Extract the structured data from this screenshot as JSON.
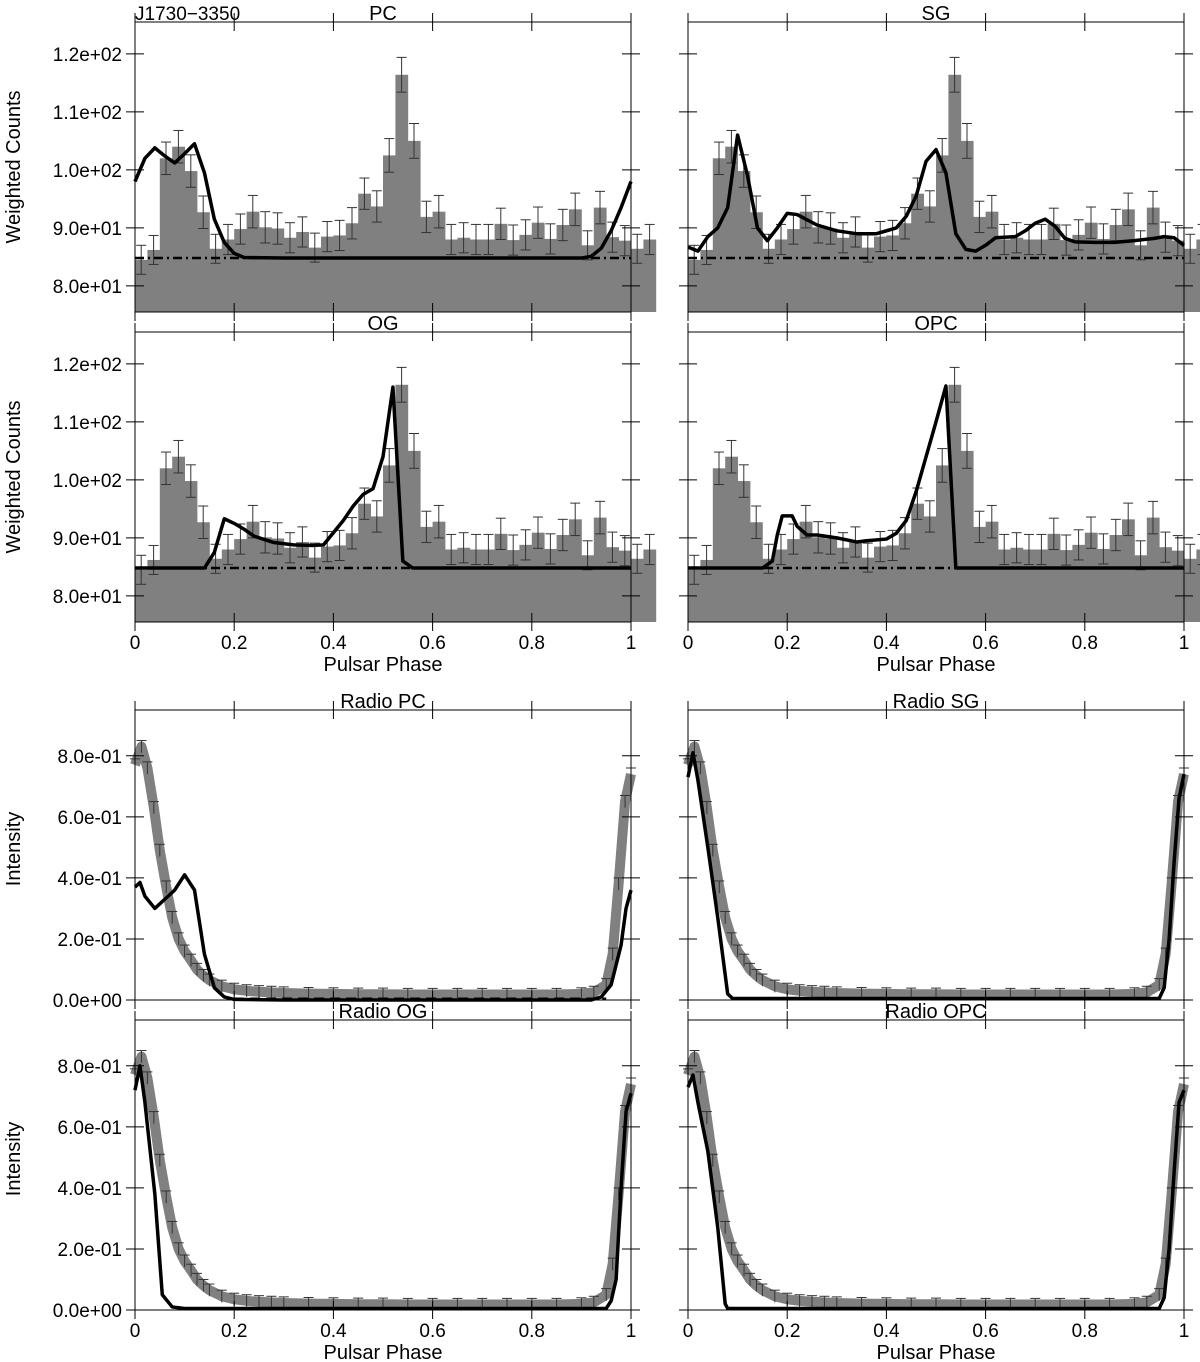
{
  "figure": {
    "source_label": "J1730−3350",
    "xlabel": "Pulsar Phase",
    "gamma_ylabel": "Weighted Counts",
    "radio_ylabel": "Intensity"
  },
  "colors": {
    "histogram": "#808080",
    "model_line": "#000000",
    "background_line": "#000000",
    "radio_profile": "#808080"
  },
  "axes": {
    "x_ticks": [
      0,
      0.2,
      0.4,
      0.6,
      0.8,
      1
    ],
    "x_tick_labels": [
      "0",
      "0.2",
      "0.4",
      "0.6",
      "0.8",
      "1"
    ],
    "gamma_ylim": [
      75.5,
      125.5
    ],
    "gamma_y_ticks": [
      80,
      90,
      100,
      110,
      120
    ],
    "gamma_y_tick_labels": [
      "8.0e+01",
      "9.0e+01",
      "1.0e+02",
      "1.1e+02",
      "1.2e+02"
    ],
    "radio_ylim": [
      0,
      0.95
    ],
    "radio_y_ticks": [
      0,
      0.2,
      0.4,
      0.6,
      0.8
    ],
    "radio_y_tick_labels": [
      "0.0e+00",
      "2.0e-01",
      "4.0e-01",
      "6.0e-01",
      "8.0e-01"
    ]
  },
  "chart_data": [
    {
      "type": "bar",
      "title": "PC",
      "xlabel": "",
      "ylabel": "Weighted Counts",
      "bin_width": 0.025,
      "histogram": [
        84.5,
        86.2,
        102.0,
        104.0,
        99.8,
        92.7,
        86.4,
        88.0,
        89.8,
        92.8,
        90.1,
        89.9,
        88.3,
        89.3,
        86.6,
        88.5,
        88.7,
        90.8,
        95.9,
        93.7,
        102.5,
        116.4,
        105.0,
        91.9,
        92.8,
        88.0,
        88.3,
        88.0,
        88.0,
        90.7,
        87.9,
        88.8,
        90.9,
        88.1,
        90.5,
        93.2,
        87.0,
        93.5,
        88.4,
        87.8,
        86.4,
        88.0
      ],
      "errors": [
        2.5,
        2.5,
        2.8,
        2.8,
        2.8,
        2.8,
        2.5,
        2.6,
        2.6,
        2.8,
        2.7,
        2.7,
        2.6,
        2.6,
        2.5,
        2.6,
        2.6,
        2.7,
        2.7,
        2.7,
        2.9,
        3.0,
        3.0,
        2.7,
        2.8,
        2.6,
        2.6,
        2.6,
        2.6,
        2.7,
        2.6,
        2.6,
        2.7,
        2.6,
        2.7,
        2.8,
        2.5,
        2.8,
        2.6,
        2.6,
        2.5,
        2.6
      ],
      "background": 84.8,
      "model": [
        [
          0.0,
          98.0
        ],
        [
          0.02,
          102.0
        ],
        [
          0.04,
          103.8
        ],
        [
          0.06,
          102.4
        ],
        [
          0.08,
          101.2
        ],
        [
          0.1,
          102.8
        ],
        [
          0.12,
          104.5
        ],
        [
          0.14,
          99.5
        ],
        [
          0.16,
          91.5
        ],
        [
          0.18,
          87.5
        ],
        [
          0.2,
          85.6
        ],
        [
          0.22,
          84.9
        ],
        [
          0.3,
          84.8
        ],
        [
          0.9,
          84.8
        ],
        [
          0.92,
          85.1
        ],
        [
          0.94,
          86.5
        ],
        [
          0.96,
          89.5
        ],
        [
          0.98,
          93.5
        ],
        [
          1.0,
          98.0
        ]
      ]
    },
    {
      "type": "bar",
      "title": "SG",
      "xlabel": "",
      "ylabel": "",
      "bin_width": 0.025,
      "histogram": [
        84.5,
        86.2,
        102.0,
        104.0,
        99.8,
        92.7,
        86.4,
        88.0,
        89.8,
        92.8,
        90.1,
        89.9,
        88.3,
        89.3,
        86.6,
        88.5,
        88.7,
        90.8,
        95.9,
        93.7,
        102.5,
        116.4,
        105.0,
        91.9,
        92.8,
        88.0,
        88.3,
        88.0,
        88.0,
        90.7,
        87.9,
        88.8,
        90.9,
        88.1,
        90.5,
        93.2,
        87.0,
        93.5,
        88.4,
        87.8,
        86.4,
        88.0
      ],
      "errors": [
        2.5,
        2.5,
        2.8,
        2.8,
        2.8,
        2.8,
        2.5,
        2.6,
        2.6,
        2.8,
        2.7,
        2.7,
        2.6,
        2.6,
        2.5,
        2.6,
        2.6,
        2.7,
        2.7,
        2.7,
        2.9,
        3.0,
        3.0,
        2.7,
        2.8,
        2.6,
        2.6,
        2.6,
        2.6,
        2.7,
        2.6,
        2.6,
        2.7,
        2.6,
        2.7,
        2.8,
        2.5,
        2.8,
        2.6,
        2.6,
        2.5,
        2.6
      ],
      "background": 84.8,
      "model": [
        [
          0.0,
          86.7
        ],
        [
          0.02,
          86.0
        ],
        [
          0.04,
          88.5
        ],
        [
          0.06,
          90.0
        ],
        [
          0.08,
          93.5
        ],
        [
          0.1,
          106.0
        ],
        [
          0.12,
          99.0
        ],
        [
          0.14,
          90.0
        ],
        [
          0.16,
          87.8
        ],
        [
          0.18,
          90.0
        ],
        [
          0.2,
          92.5
        ],
        [
          0.22,
          92.3
        ],
        [
          0.26,
          90.5
        ],
        [
          0.3,
          89.5
        ],
        [
          0.34,
          89.0
        ],
        [
          0.38,
          89.0
        ],
        [
          0.42,
          90.0
        ],
        [
          0.44,
          92.0
        ],
        [
          0.46,
          95.5
        ],
        [
          0.48,
          101.5
        ],
        [
          0.5,
          103.5
        ],
        [
          0.52,
          99.5
        ],
        [
          0.54,
          89.0
        ],
        [
          0.56,
          86.3
        ],
        [
          0.58,
          86.0
        ],
        [
          0.6,
          87.0
        ],
        [
          0.62,
          88.3
        ],
        [
          0.66,
          88.5
        ],
        [
          0.68,
          89.5
        ],
        [
          0.7,
          90.8
        ],
        [
          0.72,
          91.5
        ],
        [
          0.74,
          90.3
        ],
        [
          0.76,
          88.2
        ],
        [
          0.78,
          87.6
        ],
        [
          0.82,
          87.5
        ],
        [
          0.86,
          87.5
        ],
        [
          0.9,
          87.8
        ],
        [
          0.94,
          88.2
        ],
        [
          0.96,
          88.5
        ],
        [
          0.98,
          88.3
        ],
        [
          1.0,
          87.0
        ]
      ]
    },
    {
      "type": "bar",
      "title": "OG",
      "xlabel": "Pulsar Phase",
      "ylabel": "Weighted Counts",
      "bin_width": 0.025,
      "histogram": [
        84.5,
        86.2,
        102.0,
        104.0,
        99.8,
        92.7,
        86.4,
        88.0,
        89.8,
        92.8,
        90.1,
        89.9,
        88.3,
        89.3,
        86.6,
        88.5,
        88.7,
        90.8,
        95.9,
        93.7,
        102.5,
        116.4,
        105.0,
        91.9,
        92.8,
        88.0,
        88.3,
        88.0,
        88.0,
        90.7,
        87.9,
        88.8,
        90.9,
        88.1,
        90.5,
        93.2,
        87.0,
        93.5,
        88.4,
        87.8,
        86.4,
        88.0
      ],
      "errors": [
        2.5,
        2.5,
        2.8,
        2.8,
        2.8,
        2.8,
        2.5,
        2.6,
        2.6,
        2.8,
        2.7,
        2.7,
        2.6,
        2.6,
        2.5,
        2.6,
        2.6,
        2.7,
        2.7,
        2.7,
        2.9,
        3.0,
        3.0,
        2.7,
        2.8,
        2.6,
        2.6,
        2.6,
        2.6,
        2.7,
        2.6,
        2.6,
        2.7,
        2.6,
        2.7,
        2.8,
        2.5,
        2.8,
        2.6,
        2.6,
        2.5,
        2.6
      ],
      "background": 84.8,
      "model": [
        [
          0.0,
          84.8
        ],
        [
          0.14,
          84.8
        ],
        [
          0.16,
          87.5
        ],
        [
          0.18,
          93.3
        ],
        [
          0.2,
          92.5
        ],
        [
          0.22,
          91.5
        ],
        [
          0.24,
          90.3
        ],
        [
          0.28,
          89.2
        ],
        [
          0.32,
          88.8
        ],
        [
          0.36,
          88.7
        ],
        [
          0.38,
          88.8
        ],
        [
          0.42,
          93.0
        ],
        [
          0.44,
          95.5
        ],
        [
          0.46,
          97.5
        ],
        [
          0.48,
          98.5
        ],
        [
          0.5,
          104.0
        ],
        [
          0.52,
          116.0
        ],
        [
          0.54,
          86.0
        ],
        [
          0.56,
          84.8
        ],
        [
          1.0,
          84.8
        ]
      ]
    },
    {
      "type": "bar",
      "title": "OPC",
      "xlabel": "Pulsar Phase",
      "ylabel": "",
      "bin_width": 0.025,
      "histogram": [
        84.5,
        86.2,
        102.0,
        104.0,
        99.8,
        92.7,
        86.4,
        88.0,
        89.8,
        92.8,
        90.1,
        89.9,
        88.3,
        89.3,
        86.6,
        88.5,
        88.7,
        90.8,
        95.9,
        93.7,
        102.5,
        116.4,
        105.0,
        91.9,
        92.8,
        88.0,
        88.3,
        88.0,
        88.0,
        90.7,
        87.9,
        88.8,
        90.9,
        88.1,
        90.5,
        93.2,
        87.0,
        93.5,
        88.4,
        87.8,
        86.4,
        88.0
      ],
      "errors": [
        2.5,
        2.5,
        2.8,
        2.8,
        2.8,
        2.8,
        2.5,
        2.6,
        2.6,
        2.8,
        2.7,
        2.7,
        2.6,
        2.6,
        2.5,
        2.6,
        2.6,
        2.7,
        2.7,
        2.7,
        2.9,
        3.0,
        3.0,
        2.7,
        2.8,
        2.6,
        2.6,
        2.6,
        2.6,
        2.7,
        2.6,
        2.6,
        2.7,
        2.6,
        2.7,
        2.8,
        2.5,
        2.8,
        2.6,
        2.6,
        2.5,
        2.6
      ],
      "background": 84.8,
      "model": [
        [
          0.0,
          84.8
        ],
        [
          0.15,
          84.8
        ],
        [
          0.17,
          86.0
        ],
        [
          0.18,
          90.5
        ],
        [
          0.19,
          93.8
        ],
        [
          0.21,
          93.8
        ],
        [
          0.22,
          92.0
        ],
        [
          0.24,
          90.5
        ],
        [
          0.26,
          90.5
        ],
        [
          0.3,
          90.0
        ],
        [
          0.34,
          89.3
        ],
        [
          0.36,
          89.5
        ],
        [
          0.4,
          89.8
        ],
        [
          0.42,
          90.8
        ],
        [
          0.44,
          93.0
        ],
        [
          0.46,
          98.0
        ],
        [
          0.48,
          104.0
        ],
        [
          0.5,
          110.0
        ],
        [
          0.52,
          116.2
        ],
        [
          0.54,
          84.8
        ],
        [
          1.0,
          84.8
        ]
      ]
    },
    {
      "type": "line",
      "title": "Radio PC",
      "xlabel": "",
      "ylabel": "Intensity",
      "radio_phase": [
        0.0,
        0.013,
        0.025,
        0.038,
        0.05,
        0.063,
        0.075,
        0.088,
        0.1,
        0.113,
        0.125,
        0.138,
        0.15,
        0.175,
        0.2,
        0.225,
        0.25,
        0.275,
        0.3,
        0.35,
        0.4,
        0.45,
        0.5,
        0.55,
        0.6,
        0.65,
        0.7,
        0.75,
        0.8,
        0.85,
        0.9,
        0.925,
        0.95,
        0.963,
        0.975,
        0.988,
        1.0
      ],
      "radio_profile": [
        0.77,
        0.83,
        0.76,
        0.63,
        0.49,
        0.37,
        0.27,
        0.2,
        0.16,
        0.13,
        0.1,
        0.08,
        0.065,
        0.045,
        0.035,
        0.03,
        0.027,
        0.025,
        0.023,
        0.021,
        0.02,
        0.019,
        0.019,
        0.018,
        0.018,
        0.018,
        0.018,
        0.018,
        0.018,
        0.018,
        0.02,
        0.025,
        0.05,
        0.15,
        0.38,
        0.65,
        0.74
      ],
      "model": [
        [
          0.0,
          0.37
        ],
        [
          0.01,
          0.385
        ],
        [
          0.02,
          0.34
        ],
        [
          0.04,
          0.3
        ],
        [
          0.06,
          0.33
        ],
        [
          0.08,
          0.36
        ],
        [
          0.1,
          0.41
        ],
        [
          0.12,
          0.36
        ],
        [
          0.14,
          0.15
        ],
        [
          0.16,
          0.04
        ],
        [
          0.18,
          0.01
        ],
        [
          0.2,
          0.002
        ],
        [
          0.3,
          0.0
        ],
        [
          0.92,
          0.0
        ],
        [
          0.94,
          0.01
        ],
        [
          0.96,
          0.05
        ],
        [
          0.98,
          0.18
        ],
        [
          0.99,
          0.3
        ],
        [
          1.0,
          0.36
        ]
      ]
    },
    {
      "type": "line",
      "title": "Radio SG",
      "xlabel": "",
      "ylabel": "",
      "radio_phase": [
        0.0,
        0.013,
        0.025,
        0.038,
        0.05,
        0.063,
        0.075,
        0.088,
        0.1,
        0.113,
        0.125,
        0.138,
        0.15,
        0.175,
        0.2,
        0.225,
        0.25,
        0.275,
        0.3,
        0.35,
        0.4,
        0.45,
        0.5,
        0.55,
        0.6,
        0.65,
        0.7,
        0.75,
        0.8,
        0.85,
        0.9,
        0.925,
        0.95,
        0.963,
        0.975,
        0.988,
        1.0
      ],
      "radio_profile": [
        0.77,
        0.83,
        0.76,
        0.63,
        0.49,
        0.37,
        0.27,
        0.2,
        0.16,
        0.13,
        0.1,
        0.08,
        0.065,
        0.045,
        0.035,
        0.03,
        0.027,
        0.025,
        0.023,
        0.021,
        0.02,
        0.019,
        0.019,
        0.018,
        0.018,
        0.018,
        0.018,
        0.018,
        0.018,
        0.018,
        0.02,
        0.025,
        0.05,
        0.15,
        0.38,
        0.65,
        0.74
      ],
      "model": [
        [
          0.0,
          0.73
        ],
        [
          0.01,
          0.81
        ],
        [
          0.02,
          0.72
        ],
        [
          0.04,
          0.5
        ],
        [
          0.06,
          0.27
        ],
        [
          0.08,
          0.02
        ],
        [
          0.09,
          0.005
        ],
        [
          0.95,
          0.005
        ],
        [
          0.96,
          0.04
        ],
        [
          0.97,
          0.2
        ],
        [
          0.98,
          0.45
        ],
        [
          0.99,
          0.66
        ],
        [
          1.0,
          0.74
        ]
      ]
    },
    {
      "type": "line",
      "title": "Radio OG",
      "xlabel": "Pulsar Phase",
      "ylabel": "Intensity",
      "radio_phase": [
        0.0,
        0.013,
        0.025,
        0.038,
        0.05,
        0.063,
        0.075,
        0.088,
        0.1,
        0.113,
        0.125,
        0.138,
        0.15,
        0.175,
        0.2,
        0.225,
        0.25,
        0.275,
        0.3,
        0.35,
        0.4,
        0.45,
        0.5,
        0.55,
        0.6,
        0.65,
        0.7,
        0.75,
        0.8,
        0.85,
        0.9,
        0.925,
        0.95,
        0.963,
        0.975,
        0.988,
        1.0
      ],
      "radio_profile": [
        0.77,
        0.83,
        0.76,
        0.63,
        0.49,
        0.37,
        0.27,
        0.2,
        0.16,
        0.13,
        0.1,
        0.08,
        0.065,
        0.045,
        0.035,
        0.03,
        0.027,
        0.025,
        0.023,
        0.021,
        0.02,
        0.019,
        0.019,
        0.018,
        0.018,
        0.018,
        0.018,
        0.018,
        0.018,
        0.018,
        0.02,
        0.025,
        0.05,
        0.15,
        0.38,
        0.65,
        0.74
      ],
      "model": [
        [
          0.0,
          0.72
        ],
        [
          0.01,
          0.8
        ],
        [
          0.02,
          0.68
        ],
        [
          0.04,
          0.38
        ],
        [
          0.055,
          0.05
        ],
        [
          0.075,
          0.01
        ],
        [
          0.1,
          0.005
        ],
        [
          0.95,
          0.005
        ],
        [
          0.96,
          0.03
        ],
        [
          0.97,
          0.1
        ],
        [
          0.98,
          0.4
        ],
        [
          0.99,
          0.65
        ],
        [
          1.0,
          0.71
        ]
      ]
    },
    {
      "type": "line",
      "title": "Radio OPC",
      "xlabel": "Pulsar Phase",
      "ylabel": "",
      "radio_phase": [
        0.0,
        0.013,
        0.025,
        0.038,
        0.05,
        0.063,
        0.075,
        0.088,
        0.1,
        0.113,
        0.125,
        0.138,
        0.15,
        0.175,
        0.2,
        0.225,
        0.25,
        0.275,
        0.3,
        0.35,
        0.4,
        0.45,
        0.5,
        0.55,
        0.6,
        0.65,
        0.7,
        0.75,
        0.8,
        0.85,
        0.9,
        0.925,
        0.95,
        0.963,
        0.975,
        0.988,
        1.0
      ],
      "radio_profile": [
        0.77,
        0.83,
        0.76,
        0.63,
        0.49,
        0.37,
        0.27,
        0.2,
        0.16,
        0.13,
        0.1,
        0.08,
        0.065,
        0.045,
        0.035,
        0.03,
        0.027,
        0.025,
        0.023,
        0.021,
        0.02,
        0.019,
        0.019,
        0.018,
        0.018,
        0.018,
        0.018,
        0.018,
        0.018,
        0.018,
        0.02,
        0.025,
        0.05,
        0.15,
        0.38,
        0.65,
        0.74
      ],
      "model": [
        [
          0.0,
          0.73
        ],
        [
          0.01,
          0.77
        ],
        [
          0.02,
          0.68
        ],
        [
          0.04,
          0.52
        ],
        [
          0.06,
          0.27
        ],
        [
          0.075,
          0.02
        ],
        [
          0.08,
          0.005
        ],
        [
          0.95,
          0.005
        ],
        [
          0.96,
          0.04
        ],
        [
          0.97,
          0.2
        ],
        [
          0.98,
          0.45
        ],
        [
          0.99,
          0.68
        ],
        [
          1.0,
          0.72
        ]
      ]
    }
  ]
}
